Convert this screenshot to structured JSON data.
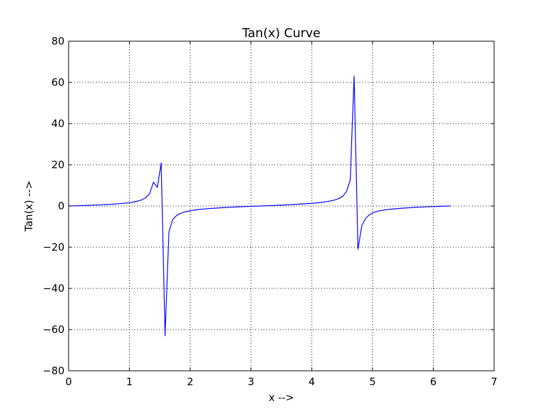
{
  "chart_data": {
    "type": "line",
    "title": "Tan(x) Curve",
    "xlabel": "x -->",
    "ylabel": "Tan(x) -->",
    "xlim": [
      0,
      7
    ],
    "ylim": [
      -80,
      80
    ],
    "xticks": [
      0,
      1,
      2,
      3,
      4,
      5,
      6,
      7
    ],
    "yticks": [
      -80,
      -60,
      -40,
      -20,
      0,
      20,
      40,
      60,
      80
    ],
    "xtick_labels": [
      "0",
      "1",
      "2",
      "3",
      "4",
      "5",
      "6",
      "7"
    ],
    "ytick_labels": [
      "−80",
      "−60",
      "−40",
      "−20",
      "0",
      "20",
      "40",
      "60",
      "80"
    ],
    "grid": true,
    "series": [
      {
        "color": "#0000ff",
        "x": [
          0,
          0.0635,
          0.127,
          0.1904,
          0.2539,
          0.3174,
          0.3808,
          0.4443,
          0.5078,
          0.5712,
          0.6347,
          0.6982,
          0.7616,
          0.8251,
          0.8886,
          0.952,
          1.0155,
          1.079,
          1.1424,
          1.2059,
          1.2694,
          1.3328,
          1.3963,
          1.4598,
          1.5232,
          1.5867,
          1.6502,
          1.7136,
          1.7771,
          1.8406,
          1.904,
          1.9675,
          2.031,
          2.0944,
          2.1579,
          2.2214,
          2.2848,
          2.3483,
          2.4118,
          2.4752,
          2.5387,
          2.6022,
          2.6656,
          2.7291,
          2.7926,
          2.856,
          2.9195,
          2.983,
          3.0464,
          3.1099,
          3.1734,
          3.2368,
          3.3003,
          3.3638,
          3.4272,
          3.4907,
          3.5542,
          3.6176,
          3.6811,
          3.7446,
          3.808,
          3.8715,
          3.935,
          3.9984,
          4.0619,
          4.1254,
          4.1888,
          4.2523,
          4.3158,
          4.3792,
          4.4427,
          4.5062,
          4.5696,
          4.6331,
          4.6966,
          4.76,
          4.8235,
          4.887,
          4.9504,
          5.0139,
          5.0774,
          5.1408,
          5.2043,
          5.2678,
          5.3312,
          5.3947,
          5.4582,
          5.5216,
          5.5851,
          5.6486,
          5.712,
          5.7755,
          5.839,
          5.9024,
          5.9659,
          6.0294,
          6.0928,
          6.1563,
          6.2198,
          6.2832
        ],
        "y": [
          0,
          0.0636,
          0.1277,
          0.1928,
          0.2596,
          0.3286,
          0.4006,
          0.4765,
          0.5574,
          0.6447,
          0.7399,
          0.8456,
          0.9648,
          1.1017,
          1.2624,
          1.4558,
          1.6958,
          2.005,
          2.4245,
          3.0373,
          4.0322,
          5.9845,
          11.5896,
          9.0,
          21.0,
          -63.0,
          -12.5,
          -6.5,
          -4.6,
          -3.6,
          -2.95,
          -2.5,
          -2.15,
          -1.88,
          -1.66,
          -1.47,
          -1.3,
          -1.16,
          -1.03,
          -0.91,
          -0.8,
          -0.7,
          -0.6,
          -0.51,
          -0.42,
          -0.33,
          -0.25,
          -0.16,
          -0.08,
          -0.03,
          0.03,
          0.1,
          0.17,
          0.25,
          0.33,
          0.42,
          0.5,
          0.6,
          0.7,
          0.8,
          0.91,
          1.03,
          1.16,
          1.3,
          1.47,
          1.66,
          1.88,
          2.15,
          2.5,
          2.95,
          3.6,
          4.6,
          7.0,
          12.5,
          63.0,
          -21.0,
          -9.5,
          -6.0,
          -4.2,
          -3.2,
          -2.6,
          -2.2,
          -1.9,
          -1.65,
          -1.45,
          -1.28,
          -1.13,
          -1.0,
          -0.88,
          -0.77,
          -0.67,
          -0.57,
          -0.48,
          -0.4,
          -0.32,
          -0.24,
          -0.16,
          -0.09,
          -0.04,
          0
        ]
      }
    ]
  }
}
